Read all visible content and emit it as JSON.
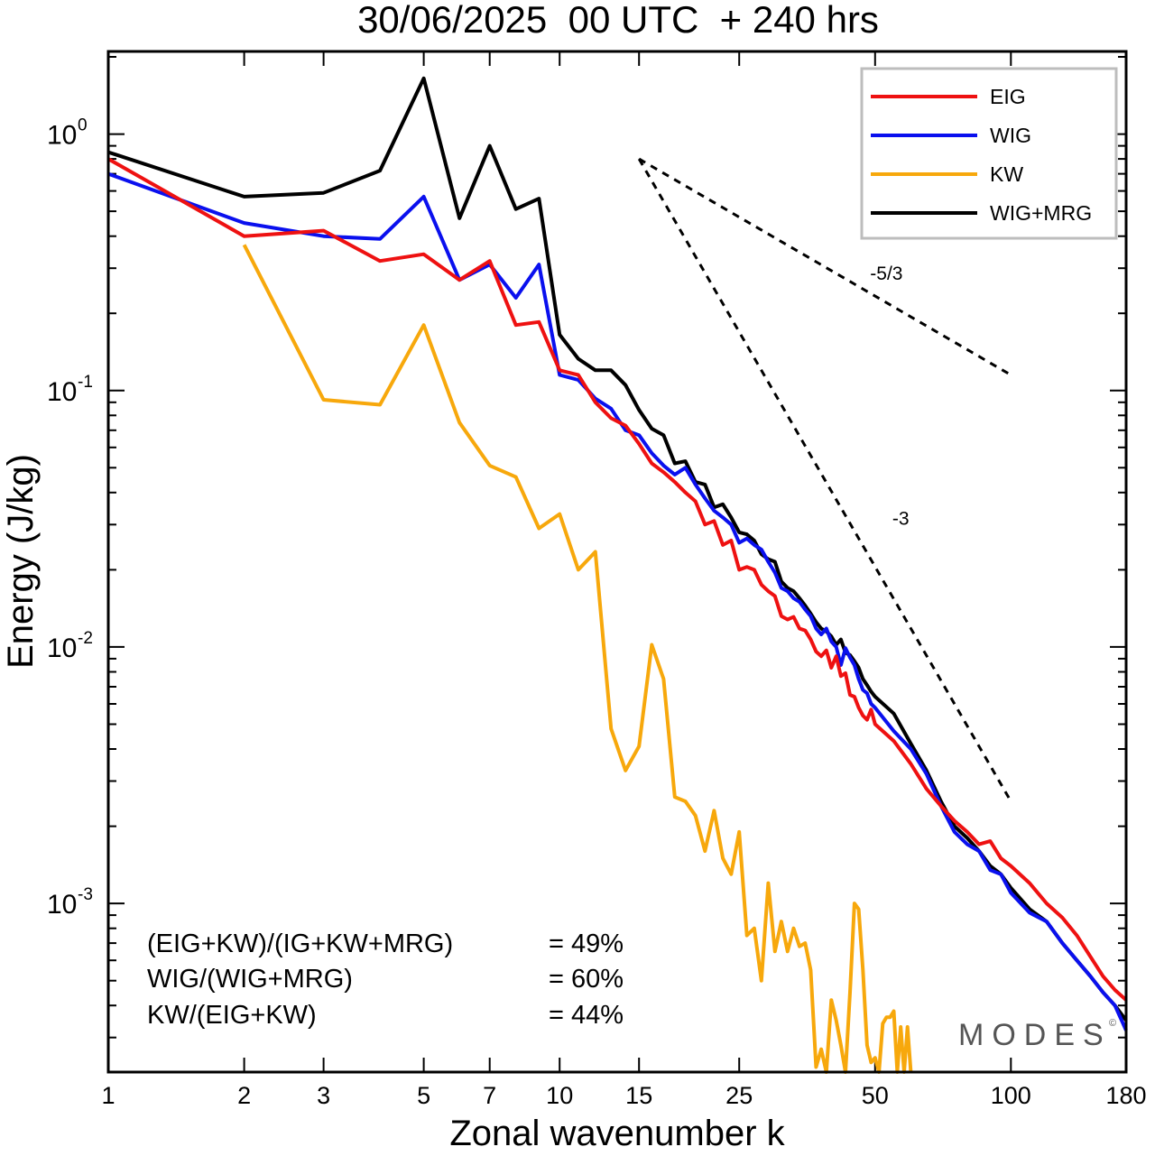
{
  "chart_data": {
    "type": "line",
    "title": "30/06/2025  00 UTC  + 240 hrs",
    "xlabel": "Zonal wavenumber k",
    "ylabel": "Energy (J/kg)",
    "xscale": "log",
    "yscale": "log",
    "xlim": [
      1,
      180
    ],
    "ylim": [
      0.00022,
      2.1
    ],
    "x_ticks": [
      1,
      2,
      3,
      5,
      7,
      10,
      15,
      25,
      50,
      100,
      180
    ],
    "x_tick_labels": [
      "1",
      "2",
      "3",
      "5",
      "7",
      "10",
      "15",
      "25",
      "50",
      "100",
      "180"
    ],
    "y_ticks": [
      {
        "value": 0.001,
        "base": "10",
        "exp": "-3"
      },
      {
        "value": 0.01,
        "base": "10",
        "exp": "-2"
      },
      {
        "value": 0.1,
        "base": "10",
        "exp": "-1"
      },
      {
        "value": 1,
        "base": "10",
        "exp": "0"
      }
    ],
    "legend_position": "top-right",
    "series": [
      {
        "name": "EIG",
        "color": "#ee1111",
        "points": [
          [
            1,
            0.8
          ],
          [
            2,
            0.4
          ],
          [
            3,
            0.42
          ],
          [
            4,
            0.32
          ],
          [
            5,
            0.34
          ],
          [
            6,
            0.27
          ],
          [
            7,
            0.32
          ],
          [
            8,
            0.18
          ],
          [
            9,
            0.185
          ],
          [
            10,
            0.12
          ],
          [
            11,
            0.115
          ],
          [
            12,
            0.09
          ],
          [
            13,
            0.078
          ],
          [
            14,
            0.073
          ],
          [
            15,
            0.062
          ],
          [
            16,
            0.052
          ],
          [
            17,
            0.048
          ],
          [
            18,
            0.044
          ],
          [
            19,
            0.04
          ],
          [
            20,
            0.037
          ],
          [
            21,
            0.03
          ],
          [
            22,
            0.031
          ],
          [
            23,
            0.025
          ],
          [
            24,
            0.026
          ],
          [
            25,
            0.02
          ],
          [
            26,
            0.0205
          ],
          [
            27,
            0.02
          ],
          [
            28,
            0.0175
          ],
          [
            29,
            0.0165
          ],
          [
            30,
            0.0158
          ],
          [
            31,
            0.0132
          ],
          [
            32,
            0.0128
          ],
          [
            33,
            0.0131
          ],
          [
            34,
            0.0118
          ],
          [
            35,
            0.0116
          ],
          [
            36,
            0.0107
          ],
          [
            37,
            0.0096
          ],
          [
            38,
            0.0092
          ],
          [
            39,
            0.0097
          ],
          [
            40,
            0.0083
          ],
          [
            41,
            0.0092
          ],
          [
            42,
            0.0077
          ],
          [
            43,
            0.0079
          ],
          [
            44,
            0.0065
          ],
          [
            45,
            0.0064
          ],
          [
            46,
            0.0058
          ],
          [
            47,
            0.0054
          ],
          [
            48,
            0.0052
          ],
          [
            49,
            0.0057
          ],
          [
            50,
            0.005
          ],
          [
            55,
            0.0043
          ],
          [
            60,
            0.0035
          ],
          [
            65,
            0.0028
          ],
          [
            70,
            0.0024
          ],
          [
            75,
            0.0021
          ],
          [
            80,
            0.0019
          ],
          [
            85,
            0.0017
          ],
          [
            90,
            0.00175
          ],
          [
            95,
            0.0015
          ],
          [
            100,
            0.0014
          ],
          [
            110,
            0.0012
          ],
          [
            120,
            0.001
          ],
          [
            130,
            0.00088
          ],
          [
            140,
            0.00075
          ],
          [
            150,
            0.00062
          ],
          [
            160,
            0.00052
          ],
          [
            170,
            0.00046
          ],
          [
            180,
            0.00042
          ]
        ]
      },
      {
        "name": "WIG",
        "color": "#0a10ee",
        "points": [
          [
            1,
            0.7
          ],
          [
            2,
            0.45
          ],
          [
            3,
            0.4
          ],
          [
            4,
            0.39
          ],
          [
            5,
            0.57
          ],
          [
            6,
            0.27
          ],
          [
            7,
            0.31
          ],
          [
            8,
            0.23
          ],
          [
            9,
            0.31
          ],
          [
            10,
            0.115
          ],
          [
            11,
            0.11
          ],
          [
            12,
            0.093
          ],
          [
            13,
            0.085
          ],
          [
            14,
            0.07
          ],
          [
            15,
            0.067
          ],
          [
            16,
            0.057
          ],
          [
            17,
            0.051
          ],
          [
            18,
            0.047
          ],
          [
            19,
            0.05
          ],
          [
            20,
            0.043
          ],
          [
            21,
            0.038
          ],
          [
            22,
            0.034
          ],
          [
            23,
            0.032
          ],
          [
            24,
            0.03
          ],
          [
            25,
            0.0255
          ],
          [
            26,
            0.0265
          ],
          [
            27,
            0.025
          ],
          [
            28,
            0.024
          ],
          [
            29,
            0.0215
          ],
          [
            30,
            0.0195
          ],
          [
            31,
            0.017
          ],
          [
            32,
            0.0165
          ],
          [
            33,
            0.0155
          ],
          [
            34,
            0.015
          ],
          [
            35,
            0.014
          ],
          [
            36,
            0.0132
          ],
          [
            37,
            0.0118
          ],
          [
            38,
            0.0112
          ],
          [
            39,
            0.0118
          ],
          [
            40,
            0.0105
          ],
          [
            41,
            0.01
          ],
          [
            42,
            0.0085
          ],
          [
            43,
            0.0099
          ],
          [
            44,
            0.0091
          ],
          [
            45,
            0.0085
          ],
          [
            46,
            0.0075
          ],
          [
            47,
            0.0068
          ],
          [
            48,
            0.0066
          ],
          [
            49,
            0.006
          ],
          [
            50,
            0.0058
          ],
          [
            55,
            0.0047
          ],
          [
            60,
            0.004
          ],
          [
            65,
            0.0032
          ],
          [
            70,
            0.0024
          ],
          [
            75,
            0.0019
          ],
          [
            80,
            0.0017
          ],
          [
            85,
            0.0016
          ],
          [
            90,
            0.00135
          ],
          [
            95,
            0.0013
          ],
          [
            100,
            0.0011
          ],
          [
            110,
            0.00092
          ],
          [
            120,
            0.00085
          ],
          [
            130,
            0.0007
          ],
          [
            140,
            0.0006
          ],
          [
            150,
            0.00052
          ],
          [
            160,
            0.00045
          ],
          [
            170,
            0.0004
          ],
          [
            180,
            0.00032
          ]
        ]
      },
      {
        "name": "KW",
        "color": "#f7a80c",
        "points": [
          [
            2,
            0.37
          ],
          [
            3,
            0.092
          ],
          [
            4,
            0.088
          ],
          [
            5,
            0.18
          ],
          [
            6,
            0.075
          ],
          [
            7,
            0.051
          ],
          [
            8,
            0.046
          ],
          [
            9,
            0.029
          ],
          [
            10,
            0.033
          ],
          [
            11,
            0.02
          ],
          [
            12,
            0.0235
          ],
          [
            13,
            0.0048
          ],
          [
            14,
            0.0033
          ],
          [
            15,
            0.0041
          ],
          [
            16,
            0.0102
          ],
          [
            17,
            0.0075
          ],
          [
            18,
            0.0026
          ],
          [
            19,
            0.0025
          ],
          [
            20,
            0.0022
          ],
          [
            21,
            0.0016
          ],
          [
            22,
            0.0023
          ],
          [
            23,
            0.0015
          ],
          [
            24,
            0.0013
          ],
          [
            25,
            0.0019
          ],
          [
            26,
            0.00075
          ],
          [
            27,
            0.0008
          ],
          [
            28,
            0.0005
          ],
          [
            29,
            0.0012
          ],
          [
            30,
            0.00065
          ],
          [
            31,
            0.00085
          ],
          [
            32,
            0.00065
          ],
          [
            33,
            0.0008
          ],
          [
            34,
            0.00068
          ],
          [
            35,
            0.0007
          ],
          [
            36,
            0.00055
          ],
          [
            37,
            0.00023
          ],
          [
            38,
            0.00027
          ],
          [
            39,
            0.00022
          ],
          [
            40,
            0.00042
          ],
          [
            41,
            0.00035
          ],
          [
            42,
            0.00028
          ],
          [
            43,
            0.00022
          ],
          [
            44,
            0.00045
          ],
          [
            45,
            0.001
          ],
          [
            46,
            0.00095
          ],
          [
            47,
            0.00055
          ],
          [
            48,
            0.00028
          ],
          [
            49,
            0.00024
          ],
          [
            50,
            0.00025
          ],
          [
            51,
            0.00022
          ],
          [
            52,
            0.00034
          ],
          [
            53,
            0.00036
          ],
          [
            54,
            0.00036
          ],
          [
            55,
            0.00038
          ],
          [
            56,
            0.00022
          ],
          [
            57,
            0.00033
          ],
          [
            58,
            0.00022
          ],
          [
            59,
            0.00033
          ],
          [
            60,
            0.00022
          ]
        ]
      },
      {
        "name": "WIG+MRG",
        "color": "#000000",
        "points": [
          [
            1,
            0.85
          ],
          [
            2,
            0.57
          ],
          [
            3,
            0.59
          ],
          [
            4,
            0.72
          ],
          [
            5,
            1.65
          ],
          [
            6,
            0.47
          ],
          [
            7,
            0.9
          ],
          [
            8,
            0.51
          ],
          [
            9,
            0.56
          ],
          [
            10,
            0.165
          ],
          [
            11,
            0.133
          ],
          [
            12,
            0.12
          ],
          [
            13,
            0.12
          ],
          [
            14,
            0.105
          ],
          [
            15,
            0.084
          ],
          [
            16,
            0.071
          ],
          [
            17,
            0.067
          ],
          [
            18,
            0.052
          ],
          [
            19,
            0.053
          ],
          [
            20,
            0.044
          ],
          [
            21,
            0.043
          ],
          [
            22,
            0.035
          ],
          [
            23,
            0.036
          ],
          [
            24,
            0.032
          ],
          [
            25,
            0.028
          ],
          [
            26,
            0.0275
          ],
          [
            27,
            0.026
          ],
          [
            28,
            0.023
          ],
          [
            29,
            0.022
          ],
          [
            30,
            0.0215
          ],
          [
            31,
            0.018
          ],
          [
            32,
            0.017
          ],
          [
            33,
            0.0165
          ],
          [
            34,
            0.0155
          ],
          [
            35,
            0.0145
          ],
          [
            36,
            0.0135
          ],
          [
            37,
            0.0125
          ],
          [
            38,
            0.0118
          ],
          [
            39,
            0.0115
          ],
          [
            40,
            0.011
          ],
          [
            41,
            0.0102
          ],
          [
            42,
            0.0107
          ],
          [
            43,
            0.0095
          ],
          [
            44,
            0.0093
          ],
          [
            45,
            0.0088
          ],
          [
            46,
            0.0083
          ],
          [
            47,
            0.0075
          ],
          [
            48,
            0.0071
          ],
          [
            49,
            0.0067
          ],
          [
            50,
            0.0064
          ],
          [
            55,
            0.0055
          ],
          [
            60,
            0.0042
          ],
          [
            65,
            0.0033
          ],
          [
            70,
            0.0025
          ],
          [
            75,
            0.002
          ],
          [
            80,
            0.0018
          ],
          [
            85,
            0.0016
          ],
          [
            90,
            0.0014
          ],
          [
            95,
            0.0013
          ],
          [
            100,
            0.00115
          ],
          [
            110,
            0.00095
          ],
          [
            120,
            0.00085
          ],
          [
            130,
            0.0007
          ],
          [
            140,
            0.0006
          ],
          [
            150,
            0.00052
          ],
          [
            160,
            0.00045
          ],
          [
            170,
            0.0004
          ],
          [
            180,
            0.00035
          ]
        ]
      }
    ],
    "reference_lines": [
      {
        "label": "-5/3",
        "start": [
          15,
          0.8
        ],
        "end": [
          100,
          0.115
        ],
        "label_at": [
          53,
          0.27
        ]
      },
      {
        "label": "-3",
        "start": [
          15,
          0.8
        ],
        "end": [
          100,
          0.0025
        ],
        "label_at": [
          57,
          0.03
        ]
      }
    ],
    "ratios": [
      {
        "label": "(EIG+KW)/(IG+KW+MRG)",
        "value": "= 49%"
      },
      {
        "label": "WIG/(WIG+MRG)",
        "value": "= 60%"
      },
      {
        "label": "KW/(EIG+KW)",
        "value": "= 44%"
      }
    ],
    "brand": "MODES",
    "brand_mark": "©"
  }
}
